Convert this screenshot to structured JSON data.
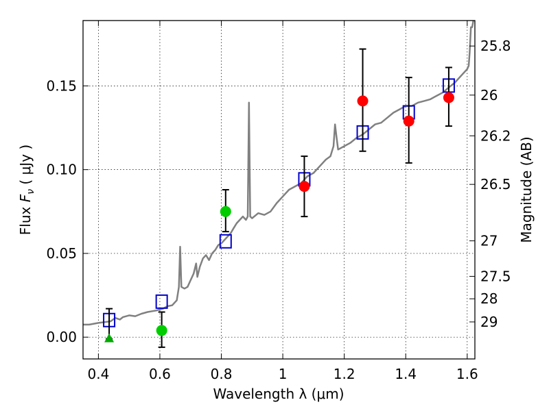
{
  "chart_data": {
    "type": "scatter",
    "title": "",
    "xlabel": "Wavelength  λ (μm)",
    "ylabel": {
      "prefix": "Flux  ",
      "symbol": "F",
      "subscript": "ν",
      "unit": "  ( μJy )"
    },
    "y2label": "Magnitude (AB)",
    "xlim": [
      0.35,
      1.625
    ],
    "ylim": [
      -0.013,
      0.189
    ],
    "grid": true,
    "x_ticks": [
      {
        "value": 0.4,
        "label": "0.4"
      },
      {
        "value": 0.6,
        "label": "0.6"
      },
      {
        "value": 0.8,
        "label": "0.8"
      },
      {
        "value": 1.0,
        "label": "1"
      },
      {
        "value": 1.2,
        "label": "1.2"
      },
      {
        "value": 1.4,
        "label": "1.4"
      },
      {
        "value": 1.6,
        "label": "1.6"
      }
    ],
    "y_ticks": [
      {
        "value": 0.0,
        "label": "0.00"
      },
      {
        "value": 0.05,
        "label": "0.05"
      },
      {
        "value": 0.1,
        "label": "0.10"
      },
      {
        "value": 0.15,
        "label": "0.15"
      }
    ],
    "y2_ticks": [
      {
        "flux": 0.1738,
        "label": "25.8"
      },
      {
        "flux": 0.1445,
        "label": "26"
      },
      {
        "flux": 0.1202,
        "label": "26.2"
      },
      {
        "flux": 0.0912,
        "label": "26.5"
      },
      {
        "flux": 0.0575,
        "label": "27"
      },
      {
        "flux": 0.0363,
        "label": "27.5"
      },
      {
        "flux": 0.0229,
        "label": "28"
      },
      {
        "flux": 0.0091,
        "label": "29"
      }
    ],
    "model_spectrum": {
      "name": "model SED",
      "color": "#808080",
      "points": [
        [
          0.35,
          0.0075
        ],
        [
          0.37,
          0.0075
        ],
        [
          0.385,
          0.008
        ],
        [
          0.4,
          0.0085
        ],
        [
          0.42,
          0.009
        ],
        [
          0.44,
          0.0095
        ],
        [
          0.455,
          0.0115
        ],
        [
          0.47,
          0.0105
        ],
        [
          0.48,
          0.012
        ],
        [
          0.5,
          0.013
        ],
        [
          0.52,
          0.0125
        ],
        [
          0.54,
          0.014
        ],
        [
          0.56,
          0.015
        ],
        [
          0.575,
          0.0155
        ],
        [
          0.59,
          0.016
        ],
        [
          0.61,
          0.017
        ],
        [
          0.625,
          0.0185
        ],
        [
          0.64,
          0.019
        ],
        [
          0.655,
          0.022
        ],
        [
          0.662,
          0.03
        ],
        [
          0.666,
          0.054
        ],
        [
          0.67,
          0.03
        ],
        [
          0.68,
          0.029
        ],
        [
          0.69,
          0.03
        ],
        [
          0.7,
          0.034
        ],
        [
          0.71,
          0.038
        ],
        [
          0.718,
          0.044
        ],
        [
          0.722,
          0.036
        ],
        [
          0.73,
          0.042
        ],
        [
          0.74,
          0.047
        ],
        [
          0.75,
          0.049
        ],
        [
          0.76,
          0.046
        ],
        [
          0.77,
          0.05
        ],
        [
          0.78,
          0.052
        ],
        [
          0.79,
          0.055
        ],
        [
          0.8,
          0.056
        ],
        [
          0.81,
          0.058
        ],
        [
          0.82,
          0.06
        ],
        [
          0.83,
          0.062
        ],
        [
          0.84,
          0.065
        ],
        [
          0.85,
          0.068
        ],
        [
          0.86,
          0.07
        ],
        [
          0.87,
          0.072
        ],
        [
          0.88,
          0.07
        ],
        [
          0.886,
          0.072
        ],
        [
          0.89,
          0.14
        ],
        [
          0.894,
          0.072
        ],
        [
          0.9,
          0.071
        ],
        [
          0.92,
          0.074
        ],
        [
          0.94,
          0.073
        ],
        [
          0.96,
          0.075
        ],
        [
          0.98,
          0.08
        ],
        [
          1.0,
          0.084
        ],
        [
          1.02,
          0.088
        ],
        [
          1.04,
          0.09
        ],
        [
          1.06,
          0.092
        ],
        [
          1.08,
          0.096
        ],
        [
          1.1,
          0.098
        ],
        [
          1.12,
          0.102
        ],
        [
          1.14,
          0.106
        ],
        [
          1.155,
          0.108
        ],
        [
          1.165,
          0.114
        ],
        [
          1.17,
          0.127
        ],
        [
          1.175,
          0.119
        ],
        [
          1.18,
          0.112
        ],
        [
          1.2,
          0.114
        ],
        [
          1.22,
          0.116
        ],
        [
          1.24,
          0.119
        ],
        [
          1.26,
          0.121
        ],
        [
          1.28,
          0.124
        ],
        [
          1.3,
          0.127
        ],
        [
          1.32,
          0.128
        ],
        [
          1.34,
          0.131
        ],
        [
          1.36,
          0.134
        ],
        [
          1.38,
          0.136
        ],
        [
          1.4,
          0.138
        ],
        [
          1.42,
          0.138
        ],
        [
          1.44,
          0.14
        ],
        [
          1.46,
          0.141
        ],
        [
          1.48,
          0.142
        ],
        [
          1.5,
          0.144
        ],
        [
          1.52,
          0.146
        ],
        [
          1.54,
          0.149
        ],
        [
          1.56,
          0.152
        ],
        [
          1.58,
          0.156
        ],
        [
          1.6,
          0.16
        ],
        [
          1.605,
          0.162
        ],
        [
          1.608,
          0.17
        ],
        [
          1.612,
          0.185
        ],
        [
          1.616,
          0.185
        ],
        [
          1.62,
          0.19
        ]
      ]
    },
    "series": [
      {
        "name": "model photometry",
        "marker": "open-square",
        "color": "#0000cc",
        "points": [
          {
            "x": 0.435,
            "y": 0.01
          },
          {
            "x": 0.606,
            "y": 0.021
          },
          {
            "x": 0.814,
            "y": 0.057
          },
          {
            "x": 1.07,
            "y": 0.094
          },
          {
            "x": 1.26,
            "y": 0.122
          },
          {
            "x": 1.41,
            "y": 0.134
          },
          {
            "x": 1.54,
            "y": 0.15
          }
        ]
      },
      {
        "name": "observed (red)",
        "marker": "filled-circle",
        "color": "#ff0000",
        "points": [
          {
            "x": 1.07,
            "y": 0.09,
            "err_lo": 0.072,
            "err_hi": 0.108
          },
          {
            "x": 1.26,
            "y": 0.141,
            "err_lo": 0.111,
            "err_hi": 0.172
          },
          {
            "x": 1.41,
            "y": 0.129,
            "err_lo": 0.104,
            "err_hi": 0.155
          },
          {
            "x": 1.54,
            "y": 0.143,
            "err_lo": 0.126,
            "err_hi": 0.161
          }
        ]
      },
      {
        "name": "observed (green)",
        "marker": "filled-circle",
        "color": "#00cc00",
        "points": [
          {
            "x": 0.606,
            "y": 0.004,
            "err_lo": -0.006,
            "err_hi": 0.015
          },
          {
            "x": 0.814,
            "y": 0.075,
            "err_lo": 0.063,
            "err_hi": 0.088
          }
        ]
      },
      {
        "name": "upper limit",
        "marker": "triangle",
        "color": "#00aa00",
        "points": [
          {
            "x": 0.435,
            "y": -0.001,
            "err_lo": -0.001,
            "err_hi": 0.017
          }
        ]
      }
    ]
  }
}
